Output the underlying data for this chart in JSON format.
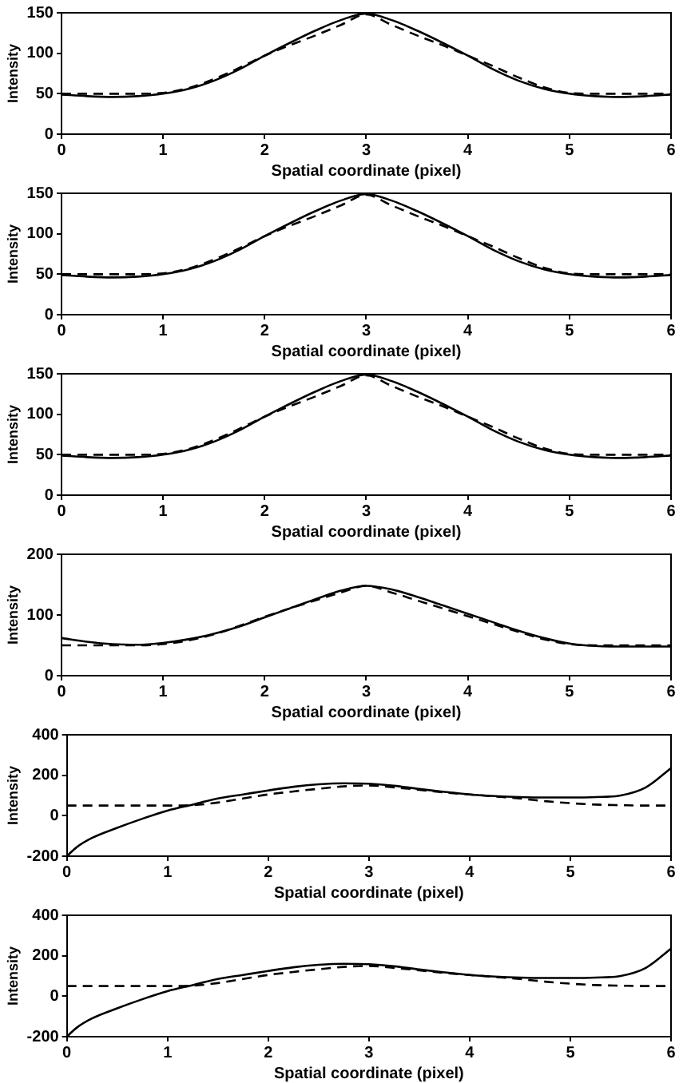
{
  "chart_data": [
    {
      "type": "line",
      "xlabel": "Spatial coordinate (pixel)",
      "ylabel": "Intensity",
      "x": [
        0,
        0.25,
        0.5,
        0.75,
        1,
        1.25,
        1.5,
        1.75,
        2,
        2.25,
        2.5,
        2.75,
        3,
        3.25,
        3.5,
        3.75,
        4,
        4.25,
        4.5,
        4.75,
        5,
        5.25,
        5.5,
        5.75,
        6
      ],
      "xlim": [
        0,
        6
      ],
      "xticks": [
        0,
        1,
        2,
        3,
        4,
        5,
        6
      ],
      "ylim": [
        0,
        150
      ],
      "yticks": [
        0,
        50,
        100,
        150
      ],
      "grid": false,
      "legend": false,
      "marker": "none",
      "series": [
        {
          "color": "#000000",
          "line_style": "solid",
          "values": [
            49,
            47,
            46,
            47,
            50,
            56,
            66,
            80,
            97,
            113,
            128,
            141,
            149,
            141,
            128,
            113,
            97,
            80,
            66,
            56,
            50,
            47,
            46,
            47,
            49
          ]
        },
        {
          "color": "#000000",
          "line_style": "dashed",
          "values": [
            50,
            50,
            50,
            50,
            51,
            57,
            68,
            82,
            97,
            110,
            122,
            135,
            148,
            135,
            122,
            110,
            97,
            84,
            70,
            58,
            51,
            50,
            50,
            50,
            50
          ]
        }
      ]
    },
    {
      "type": "line",
      "xlabel": "Spatial coordinate (pixel)",
      "ylabel": "Intensity",
      "x": [
        0,
        0.25,
        0.5,
        0.75,
        1,
        1.25,
        1.5,
        1.75,
        2,
        2.25,
        2.5,
        2.75,
        3,
        3.25,
        3.5,
        3.75,
        4,
        4.25,
        4.5,
        4.75,
        5,
        5.25,
        5.5,
        5.75,
        6
      ],
      "xlim": [
        0,
        6
      ],
      "xticks": [
        0,
        1,
        2,
        3,
        4,
        5,
        6
      ],
      "ylim": [
        0,
        150
      ],
      "yticks": [
        0,
        50,
        100,
        150
      ],
      "grid": false,
      "legend": false,
      "marker": "none",
      "series": [
        {
          "color": "#000000",
          "line_style": "solid",
          "values": [
            49,
            47,
            46,
            47,
            50,
            56,
            66,
            80,
            97,
            113,
            128,
            141,
            149,
            141,
            128,
            113,
            97,
            80,
            66,
            56,
            50,
            47,
            46,
            47,
            49
          ]
        },
        {
          "color": "#000000",
          "line_style": "dashed",
          "values": [
            50,
            50,
            50,
            50,
            51,
            57,
            68,
            82,
            97,
            110,
            122,
            135,
            148,
            135,
            122,
            110,
            97,
            84,
            70,
            58,
            51,
            50,
            50,
            50,
            50
          ]
        }
      ]
    },
    {
      "type": "line",
      "xlabel": "Spatial coordinate (pixel)",
      "ylabel": "Intensity",
      "x": [
        0,
        0.25,
        0.5,
        0.75,
        1,
        1.25,
        1.5,
        1.75,
        2,
        2.25,
        2.5,
        2.75,
        3,
        3.25,
        3.5,
        3.75,
        4,
        4.25,
        4.5,
        4.75,
        5,
        5.25,
        5.5,
        5.75,
        6
      ],
      "xlim": [
        0,
        6
      ],
      "xticks": [
        0,
        1,
        2,
        3,
        4,
        5,
        6
      ],
      "ylim": [
        0,
        150
      ],
      "yticks": [
        0,
        50,
        100,
        150
      ],
      "grid": false,
      "legend": false,
      "marker": "none",
      "series": [
        {
          "color": "#000000",
          "line_style": "solid",
          "values": [
            49,
            47,
            46,
            47,
            50,
            56,
            66,
            80,
            97,
            113,
            128,
            141,
            149,
            141,
            128,
            113,
            97,
            80,
            66,
            56,
            50,
            47,
            46,
            47,
            49
          ]
        },
        {
          "color": "#000000",
          "line_style": "dashed",
          "values": [
            50,
            50,
            50,
            50,
            51,
            57,
            68,
            82,
            97,
            110,
            122,
            135,
            148,
            135,
            122,
            110,
            97,
            84,
            70,
            58,
            51,
            50,
            50,
            50,
            50
          ]
        }
      ]
    },
    {
      "type": "line",
      "xlabel": "Spatial coordinate (pixel)",
      "ylabel": "Intensity",
      "x": [
        0,
        0.25,
        0.5,
        0.75,
        1,
        1.25,
        1.5,
        1.75,
        2,
        2.25,
        2.5,
        2.75,
        3,
        3.25,
        3.5,
        3.75,
        4,
        4.25,
        4.5,
        4.75,
        5,
        5.25,
        5.5,
        5.75,
        6
      ],
      "xlim": [
        0,
        6
      ],
      "xticks": [
        0,
        1,
        2,
        3,
        4,
        5,
        6
      ],
      "ylim": [
        0,
        200
      ],
      "yticks": [
        0,
        100,
        200
      ],
      "grid": false,
      "legend": false,
      "marker": "none",
      "series": [
        {
          "color": "#000000",
          "line_style": "solid",
          "values": [
            62,
            56,
            52,
            51,
            54,
            60,
            69,
            81,
            96,
            111,
            126,
            140,
            148,
            142,
            130,
            116,
            102,
            88,
            74,
            62,
            53,
            49,
            48,
            48,
            48
          ]
        },
        {
          "color": "#000000",
          "line_style": "dashed",
          "values": [
            50,
            50,
            50,
            50,
            52,
            58,
            68,
            82,
            97,
            111,
            124,
            137,
            148,
            137,
            124,
            111,
            98,
            85,
            72,
            60,
            52,
            50,
            50,
            50,
            50
          ]
        }
      ]
    },
    {
      "type": "line",
      "xlabel": "Spatial coordinate (pixel)",
      "ylabel": "Intensity",
      "x": [
        0,
        0.1,
        0.25,
        0.5,
        0.75,
        1,
        1.25,
        1.5,
        1.75,
        2,
        2.25,
        2.5,
        2.75,
        3,
        3.25,
        3.5,
        3.75,
        4,
        4.25,
        4.5,
        4.75,
        5,
        5.25,
        5.5,
        5.75,
        6
      ],
      "xlim": [
        0,
        6
      ],
      "xticks": [
        0,
        1,
        2,
        3,
        4,
        5,
        6
      ],
      "ylim": [
        -200,
        400
      ],
      "yticks": [
        -200,
        0,
        200,
        400
      ],
      "grid": false,
      "legend": false,
      "marker": "none",
      "series": [
        {
          "color": "#000000",
          "line_style": "solid",
          "values": [
            -200,
            -155,
            -110,
            -60,
            -15,
            25,
            55,
            85,
            105,
            125,
            143,
            155,
            160,
            158,
            148,
            132,
            118,
            105,
            97,
            92,
            90,
            90,
            92,
            100,
            140,
            235
          ]
        },
        {
          "color": "#000000",
          "line_style": "dashed",
          "values": [
            50,
            50,
            50,
            50,
            50,
            50,
            52,
            65,
            85,
            105,
            120,
            133,
            145,
            150,
            140,
            128,
            115,
            105,
            95,
            85,
            72,
            62,
            55,
            52,
            50,
            50
          ]
        }
      ]
    },
    {
      "type": "line",
      "xlabel": "Spatial coordinate (pixel)",
      "ylabel": "Intensity",
      "x": [
        0,
        0.1,
        0.25,
        0.5,
        0.75,
        1,
        1.25,
        1.5,
        1.75,
        2,
        2.25,
        2.5,
        2.75,
        3,
        3.25,
        3.5,
        3.75,
        4,
        4.25,
        4.5,
        4.75,
        5,
        5.25,
        5.5,
        5.75,
        6
      ],
      "xlim": [
        0,
        6
      ],
      "xticks": [
        0,
        1,
        2,
        3,
        4,
        5,
        6
      ],
      "ylim": [
        -200,
        400
      ],
      "yticks": [
        -200,
        0,
        200,
        400
      ],
      "grid": false,
      "legend": false,
      "marker": "none",
      "series": [
        {
          "color": "#000000",
          "line_style": "solid",
          "values": [
            -200,
            -155,
            -110,
            -60,
            -15,
            25,
            55,
            85,
            105,
            125,
            143,
            155,
            160,
            158,
            148,
            132,
            118,
            105,
            97,
            92,
            90,
            90,
            92,
            100,
            140,
            235
          ]
        },
        {
          "color": "#000000",
          "line_style": "dashed",
          "values": [
            50,
            50,
            50,
            50,
            50,
            50,
            52,
            65,
            85,
            105,
            120,
            133,
            145,
            150,
            140,
            128,
            115,
            105,
            95,
            85,
            72,
            62,
            55,
            52,
            50,
            50
          ]
        }
      ]
    }
  ]
}
